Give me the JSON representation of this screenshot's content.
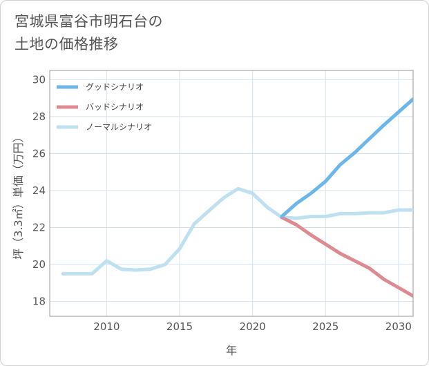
{
  "title_line1": "宮城県富谷市明石台の",
  "title_line2": "土地の価格推移",
  "chart_data": {
    "type": "line",
    "xlabel": "年",
    "ylabel": "坪（3.3㎡）単価（万円）",
    "xlim": [
      2006.1,
      2031
    ],
    "ylim": [
      17.2,
      30.5
    ],
    "xticks": [
      2010,
      2015,
      2020,
      2025,
      2030
    ],
    "yticks": [
      18,
      20,
      22,
      24,
      26,
      28,
      30
    ],
    "grid": true,
    "legend_position": "top-left",
    "series": [
      {
        "name": "グッドシナリオ",
        "color": "#6bb6ea",
        "x": [
          2022,
          2023,
          2024,
          2025,
          2026,
          2027,
          2028,
          2029,
          2030,
          2031
        ],
        "y": [
          22.6,
          23.3,
          23.85,
          24.5,
          25.4,
          26.05,
          26.8,
          27.55,
          28.25,
          28.95
        ]
      },
      {
        "name": "バッドシナリオ",
        "color": "#dd8a92",
        "x": [
          2022,
          2023,
          2024,
          2025,
          2026,
          2027,
          2028,
          2029,
          2030,
          2031
        ],
        "y": [
          22.55,
          22.15,
          21.6,
          21.1,
          20.6,
          20.2,
          19.8,
          19.2,
          18.75,
          18.3
        ]
      },
      {
        "name": "ノーマルシナリオ",
        "color": "#bfe0f0",
        "x": [
          2007,
          2008,
          2009,
          2010,
          2011,
          2012,
          2013,
          2014,
          2015,
          2016,
          2017,
          2018,
          2019,
          2020,
          2021,
          2022,
          2023,
          2024,
          2025,
          2026,
          2027,
          2028,
          2029,
          2030,
          2031
        ],
        "y": [
          19.5,
          19.5,
          19.5,
          20.2,
          19.75,
          19.7,
          19.75,
          20.0,
          20.85,
          22.2,
          22.9,
          23.6,
          24.1,
          23.85,
          23.1,
          22.55,
          22.5,
          22.6,
          22.6,
          22.75,
          22.75,
          22.8,
          22.8,
          22.95,
          22.95
        ]
      }
    ]
  }
}
